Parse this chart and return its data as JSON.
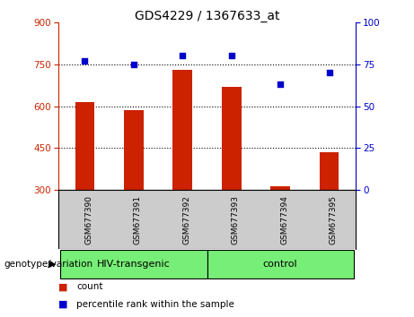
{
  "title": "GDS4229 / 1367633_at",
  "categories": [
    "GSM677390",
    "GSM677391",
    "GSM677392",
    "GSM677393",
    "GSM677394",
    "GSM677395"
  ],
  "bar_values": [
    615,
    585,
    730,
    670,
    315,
    435
  ],
  "percentile_values": [
    77,
    75,
    80,
    80,
    63,
    70
  ],
  "bar_color": "#cc2200",
  "dot_color": "#0000cc",
  "ylim_left": [
    300,
    900
  ],
  "ylim_right": [
    0,
    100
  ],
  "yticks_left": [
    300,
    450,
    600,
    750,
    900
  ],
  "yticks_right": [
    0,
    25,
    50,
    75,
    100
  ],
  "groups": [
    {
      "label": "HIV-transgenic",
      "span": [
        0,
        2
      ],
      "color": "#77ee77"
    },
    {
      "label": "control",
      "span": [
        3,
        5
      ],
      "color": "#77ee77"
    }
  ],
  "group_label": "genotype/variation",
  "legend_count_label": "count",
  "legend_percentile_label": "percentile rank within the sample",
  "tick_area_color": "#cccccc",
  "left_axis_color": "#cc2200",
  "right_axis_color": "#0000cc",
  "bar_width": 0.4
}
